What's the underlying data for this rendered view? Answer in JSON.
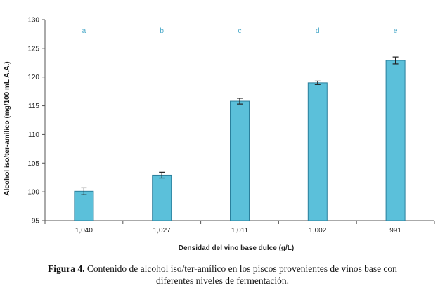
{
  "chart_data": {
    "type": "bar",
    "categories": [
      "1,040",
      "1,027",
      "1,011",
      "1,002",
      "991"
    ],
    "values": [
      100.1,
      102.9,
      115.8,
      119.0,
      122.9
    ],
    "errors": [
      0.6,
      0.5,
      0.5,
      0.3,
      0.6
    ],
    "annotations": [
      "a",
      "b",
      "c",
      "d",
      "e"
    ],
    "xlabel": "Densidad del vino base dulce (g/L)",
    "ylabel": "Alcohol iso/ter-amílico (mg/100 mL A.A.)",
    "ylim": [
      95,
      130
    ],
    "yticks": [
      95,
      100,
      105,
      110,
      115,
      120,
      125,
      130
    ],
    "bar_color": "#5bc0da",
    "bar_edge_color": "#2a7f9c",
    "grid": false
  },
  "caption": {
    "label": "Figura 4.",
    "text": " Contenido de alcohol iso/ter-amílico en los piscos provenientes de vinos base con",
    "text2": "diferentes niveles de fermentación."
  }
}
